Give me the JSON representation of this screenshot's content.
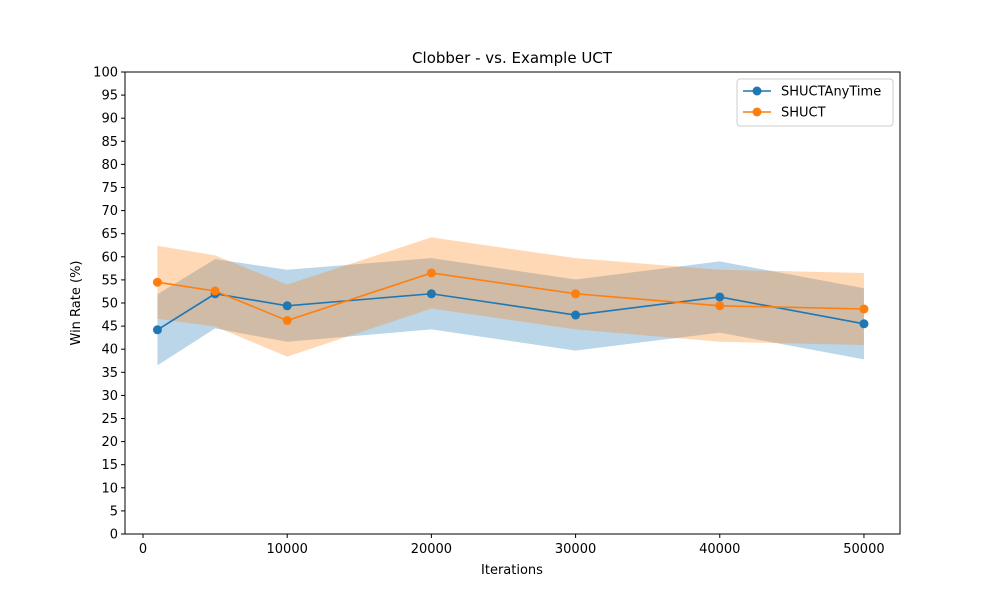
{
  "chart_data": {
    "type": "line",
    "title": "Clobber - vs. Example UCT",
    "xlabel": "Iterations",
    "ylabel": "Win Rate (%)",
    "xlim": [
      -1250,
      52500
    ],
    "ylim": [
      0,
      100
    ],
    "x_ticks": [
      0,
      10000,
      20000,
      30000,
      40000,
      50000
    ],
    "y_ticks": [
      0,
      5,
      10,
      15,
      20,
      25,
      30,
      35,
      40,
      45,
      50,
      55,
      60,
      65,
      70,
      75,
      80,
      85,
      90,
      95,
      100
    ],
    "grid": false,
    "legend_position": "top-right",
    "x": [
      1000,
      5000,
      10000,
      20000,
      30000,
      40000,
      50000
    ],
    "series": [
      {
        "name": "SHUCTAnyTime",
        "color": "#1f77b4",
        "values": [
          44.2,
          52.0,
          49.4,
          52.0,
          47.4,
          51.3,
          45.5
        ],
        "lower": [
          36.5,
          44.5,
          41.6,
          44.3,
          39.7,
          43.6,
          37.8
        ],
        "upper": [
          51.9,
          59.5,
          57.2,
          59.7,
          55.1,
          59.0,
          53.2
        ]
      },
      {
        "name": "SHUCT",
        "color": "#ff7f0e",
        "values": [
          54.5,
          52.6,
          46.2,
          56.5,
          52.0,
          49.4,
          48.7
        ],
        "lower": [
          46.6,
          44.9,
          38.4,
          48.8,
          44.3,
          41.6,
          40.9
        ],
        "upper": [
          62.4,
          60.3,
          54.0,
          64.2,
          59.7,
          57.2,
          56.5
        ]
      }
    ]
  }
}
